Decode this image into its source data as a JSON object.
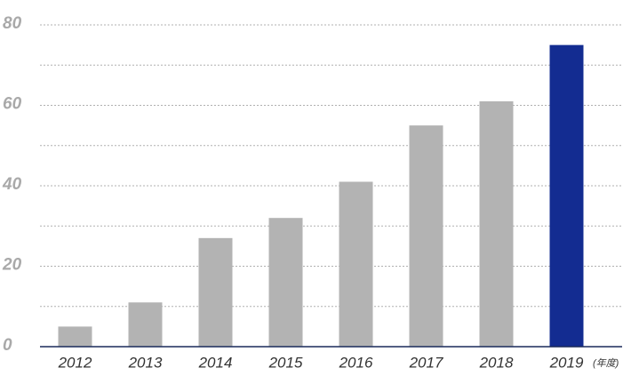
{
  "chart_data": {
    "type": "bar",
    "categories": [
      "2012",
      "2013",
      "2014",
      "2015",
      "2016",
      "2017",
      "2018",
      "2019"
    ],
    "values": [
      5,
      11,
      27,
      32,
      41,
      55,
      61,
      75
    ],
    "colors": [
      "#b3b3b3",
      "#b3b3b3",
      "#b3b3b3",
      "#b3b3b3",
      "#b3b3b3",
      "#b3b3b3",
      "#b3b3b3",
      "#132c91"
    ],
    "x_unit": "(年度)",
    "ylim": [
      0,
      80
    ],
    "yticks": [
      0,
      20,
      40,
      60,
      80
    ],
    "minor_yticks": [
      10,
      30,
      50,
      70
    ],
    "grid": true
  }
}
